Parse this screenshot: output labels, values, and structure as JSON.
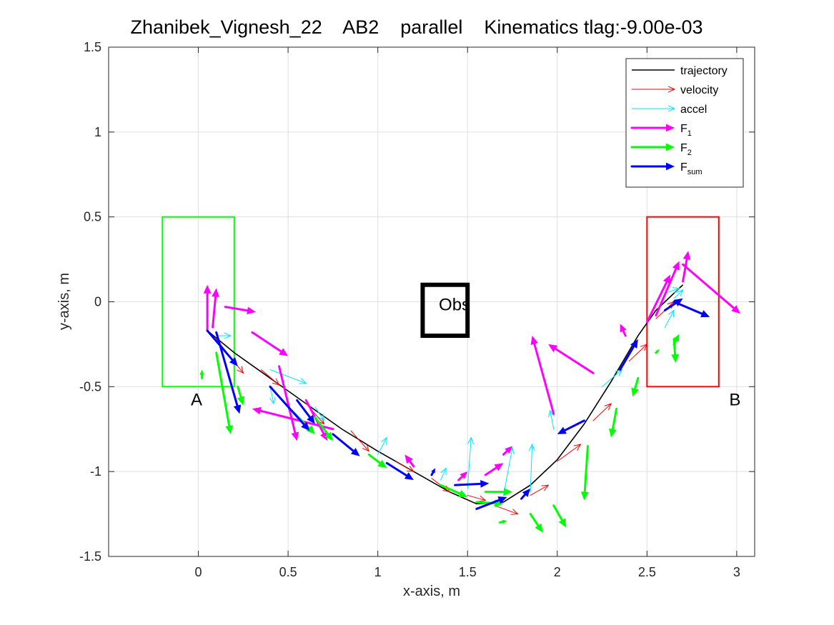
{
  "chart_data": {
    "type": "line",
    "title": "Zhanibek_Vignesh_22    AB2    parallel    Kinematics tlag:-9.00e-03",
    "xlabel": "x-axis, m",
    "ylabel": "y-axis, m",
    "xlim": [
      -0.5,
      3.1
    ],
    "ylim": [
      -1.5,
      1.5
    ],
    "xticks": [
      0,
      0.5,
      1,
      1.5,
      2,
      2.5,
      3
    ],
    "xtick_labels": [
      "0",
      "0.5",
      "1",
      "1.5",
      "2",
      "2.5",
      "3"
    ],
    "yticks": [
      -1.5,
      -1,
      -0.5,
      0,
      0.5,
      1,
      1.5
    ],
    "ytick_labels": [
      "-1.5",
      "-1",
      "-0.5",
      "0",
      "0.5",
      "1",
      "1.5"
    ],
    "grid": true,
    "legend_position": "top-right",
    "legend": [
      {
        "key": "trajectory",
        "label": "trajectory",
        "sub": "",
        "color": "#000000",
        "style": "line"
      },
      {
        "key": "velocity",
        "label": "velocity",
        "sub": "",
        "color": "#ff0000",
        "style": "thin-arrow"
      },
      {
        "key": "accel",
        "label": "accel",
        "sub": "",
        "color": "#00e5ff",
        "style": "thin-arrow"
      },
      {
        "key": "f1",
        "label": "F",
        "sub": "1",
        "color": "#ff00ff",
        "style": "thick-arrow"
      },
      {
        "key": "f2",
        "label": "F",
        "sub": "2",
        "color": "#00ff00",
        "style": "thick-arrow"
      },
      {
        "key": "fsum",
        "label": "F",
        "sub": "sum",
        "color": "#0000ff",
        "style": "thick-arrow"
      }
    ],
    "regions": [
      {
        "label": "A",
        "x0": -0.2,
        "x1": 0.2,
        "y0": -0.5,
        "y1": 0.5,
        "color": "#00ff00",
        "label_x": -0.01,
        "label_y": -0.61
      },
      {
        "label": "B",
        "x0": 2.5,
        "x1": 2.9,
        "y0": -0.5,
        "y1": 0.5,
        "color": "#ff0000",
        "label_x": 2.99,
        "label_y": -0.61
      },
      {
        "label": "Obs",
        "x0": 1.25,
        "x1": 1.5,
        "y0": -0.2,
        "y1": 0.1,
        "color": "#000000",
        "label_x": 1.34,
        "label_y": -0.05
      }
    ],
    "trajectory": {
      "x": [
        0.05,
        0.2,
        0.4,
        0.6,
        0.8,
        1.0,
        1.2,
        1.4,
        1.55,
        1.7,
        1.85,
        2.0,
        2.15,
        2.3,
        2.45,
        2.55,
        2.65,
        2.7
      ],
      "y": [
        -0.17,
        -0.3,
        -0.45,
        -0.6,
        -0.75,
        -0.88,
        -1.0,
        -1.12,
        -1.19,
        -1.18,
        -1.08,
        -0.93,
        -0.72,
        -0.47,
        -0.2,
        -0.05,
        0.05,
        0.1
      ]
    },
    "series": [
      {
        "key": "velocity",
        "color": "#ff0000",
        "points": [
          [
            0.1,
            -0.22,
            0.25,
            -0.42
          ],
          [
            0.35,
            -0.4,
            0.45,
            -0.49
          ],
          [
            0.6,
            -0.6,
            0.7,
            -0.72
          ],
          [
            0.85,
            -0.76,
            0.95,
            -0.88
          ],
          [
            1.1,
            -0.94,
            1.2,
            -1.0
          ],
          [
            1.3,
            -1.04,
            1.4,
            -1.12
          ],
          [
            1.5,
            -1.14,
            1.6,
            -1.17
          ],
          [
            1.65,
            -1.2,
            1.78,
            -1.25
          ],
          [
            1.85,
            -1.14,
            1.95,
            -1.08
          ],
          [
            2.0,
            -0.94,
            2.13,
            -0.84
          ],
          [
            2.2,
            -0.7,
            2.3,
            -0.6
          ],
          [
            2.4,
            -0.35,
            2.5,
            -0.25
          ],
          [
            2.55,
            -0.1,
            2.65,
            0.0
          ]
        ]
      },
      {
        "key": "accel",
        "color": "#00e5ff",
        "points": [
          [
            0.1,
            -0.2,
            0.18,
            -0.2
          ],
          [
            0.4,
            -0.4,
            0.6,
            -0.48
          ],
          [
            0.4,
            -0.5,
            0.42,
            -0.6
          ],
          [
            0.65,
            -0.62,
            0.7,
            -0.7
          ],
          [
            1.0,
            -0.9,
            1.05,
            -0.8
          ],
          [
            1.35,
            -1.05,
            1.38,
            -0.98
          ],
          [
            1.5,
            -1.1,
            1.52,
            -0.8
          ],
          [
            1.7,
            -1.14,
            1.75,
            -0.86
          ],
          [
            1.85,
            -1.12,
            1.86,
            -0.84
          ],
          [
            1.98,
            -0.75,
            1.96,
            -0.64
          ],
          [
            2.25,
            -0.5,
            2.36,
            -0.4
          ],
          [
            2.6,
            -0.15,
            2.65,
            -0.05
          ],
          [
            2.6,
            0.05,
            2.68,
            0.08
          ],
          [
            2.65,
            0.02,
            2.7,
            0.07
          ]
        ]
      },
      {
        "key": "f1",
        "color": "#ff00ff",
        "points": [
          [
            0.05,
            -0.17,
            0.05,
            0.1
          ],
          [
            0.08,
            -0.15,
            0.1,
            0.08
          ],
          [
            0.15,
            -0.03,
            0.32,
            -0.06
          ],
          [
            0.3,
            -0.18,
            0.5,
            -0.32
          ],
          [
            0.45,
            -0.38,
            0.55,
            -0.82
          ],
          [
            0.75,
            -0.75,
            0.3,
            -0.63
          ],
          [
            0.6,
            -0.58,
            0.72,
            -0.82
          ],
          [
            1.2,
            -0.97,
            1.15,
            -0.9
          ],
          [
            1.45,
            -1.05,
            1.5,
            -1.0
          ],
          [
            1.6,
            -1.02,
            1.7,
            -0.95
          ],
          [
            1.7,
            -0.9,
            1.75,
            -0.85
          ],
          [
            1.98,
            -0.66,
            1.86,
            -0.2
          ],
          [
            2.2,
            -0.42,
            1.95,
            -0.25
          ],
          [
            2.38,
            -0.2,
            2.35,
            -0.13
          ],
          [
            2.5,
            -0.12,
            2.63,
            0.16
          ],
          [
            2.55,
            -0.08,
            2.68,
            0.24
          ],
          [
            2.7,
            0.22,
            3.02,
            -0.07
          ],
          [
            2.7,
            0.12,
            2.73,
            0.3
          ]
        ]
      },
      {
        "key": "f2",
        "color": "#00ff00",
        "points": [
          [
            0.02,
            -0.45,
            0.02,
            -0.4
          ],
          [
            0.1,
            -0.3,
            0.18,
            -0.78
          ],
          [
            0.22,
            -0.5,
            0.25,
            -0.61
          ],
          [
            0.52,
            -0.64,
            0.65,
            -0.78
          ],
          [
            0.65,
            -0.68,
            0.75,
            -0.82
          ],
          [
            0.95,
            -0.9,
            1.05,
            -0.98
          ],
          [
            1.35,
            -1.08,
            1.5,
            -1.15
          ],
          [
            1.6,
            -1.12,
            1.75,
            -1.12
          ],
          [
            1.55,
            -1.18,
            1.7,
            -1.19
          ],
          [
            1.68,
            -1.3,
            1.72,
            -1.29
          ],
          [
            1.85,
            -1.25,
            1.92,
            -1.36
          ],
          [
            1.98,
            -1.2,
            2.05,
            -1.33
          ],
          [
            2.17,
            -0.85,
            2.15,
            -1.17
          ],
          [
            2.33,
            -0.63,
            2.3,
            -0.8
          ],
          [
            2.45,
            -0.45,
            2.42,
            -0.56
          ],
          [
            2.55,
            -0.3,
            2.57,
            -0.28
          ],
          [
            2.65,
            -0.22,
            2.66,
            -0.36
          ],
          [
            2.65,
            -0.25,
            2.68,
            -0.19
          ]
        ]
      },
      {
        "key": "fsum",
        "color": "#0000ff",
        "points": [
          [
            0.05,
            -0.17,
            0.22,
            -0.38
          ],
          [
            0.1,
            -0.18,
            0.23,
            -0.66
          ],
          [
            0.4,
            -0.5,
            0.62,
            -0.76
          ],
          [
            0.55,
            -0.58,
            0.65,
            -0.72
          ],
          [
            0.75,
            -0.78,
            0.9,
            -0.91
          ],
          [
            1.05,
            -0.95,
            1.2,
            -1.05
          ],
          [
            1.3,
            -1.02,
            1.32,
            -0.98
          ],
          [
            1.43,
            -1.08,
            1.62,
            -1.07
          ],
          [
            1.55,
            -1.22,
            1.72,
            -1.15
          ],
          [
            1.8,
            -1.16,
            1.85,
            -1.1
          ],
          [
            2.15,
            -0.7,
            2.0,
            -0.78
          ],
          [
            2.35,
            -0.4,
            2.45,
            -0.22
          ],
          [
            2.65,
            0.0,
            2.85,
            -0.09
          ],
          [
            2.6,
            -0.05,
            2.7,
            0.02
          ]
        ]
      }
    ]
  }
}
